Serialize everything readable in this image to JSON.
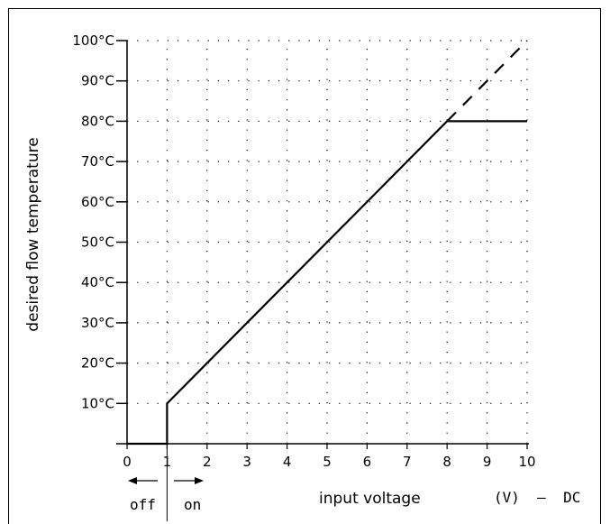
{
  "chart_data": {
    "type": "line",
    "ylabel": "desired flow temperature",
    "xlabel": "input voltage",
    "unit_label": "(V)  –  DC",
    "off_label": "off",
    "on_label": "on",
    "xlim": [
      0,
      10
    ],
    "ylim": [
      0,
      100
    ],
    "x_ticks": [
      "0",
      "1",
      "2",
      "3",
      "4",
      "5",
      "6",
      "7",
      "8",
      "9",
      "10"
    ],
    "y_ticks": [
      {
        "value": 10,
        "label": "10°C"
      },
      {
        "value": 20,
        "label": "20°C"
      },
      {
        "value": 30,
        "label": "30°C"
      },
      {
        "value": 40,
        "label": "40°C"
      },
      {
        "value": 50,
        "label": "50°C"
      },
      {
        "value": 60,
        "label": "60°C"
      },
      {
        "value": 70,
        "label": "70°C"
      },
      {
        "value": 80,
        "label": "80°C"
      },
      {
        "value": 90,
        "label": "90°C"
      },
      {
        "value": 100,
        "label": "100°C"
      }
    ],
    "grid": "dotted",
    "series": [
      {
        "style": "solid",
        "points": [
          [
            0,
            0
          ],
          [
            1,
            0
          ],
          [
            1,
            10
          ],
          [
            8,
            80
          ],
          [
            10,
            80
          ]
        ]
      },
      {
        "style": "dashed",
        "points": [
          [
            8,
            80
          ],
          [
            10,
            100
          ]
        ]
      }
    ],
    "color": "#000000"
  }
}
